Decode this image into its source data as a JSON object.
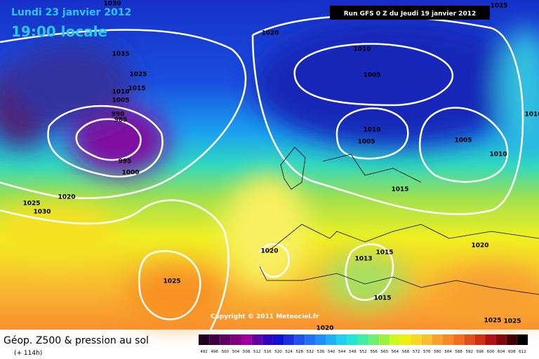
{
  "header": {
    "date": "Lundi 23 janvier 2012",
    "time": "19:00 locale",
    "run": "Run GFS 0 Z du Jeudi 19 janvier 2012"
  },
  "copyright": "Copyright © 2011 Meteociel.fr",
  "legend": {
    "title": "Géop. Z500 & pression au sol",
    "lead": "(+ 114h)",
    "scale": [
      492,
      496,
      500,
      504,
      508,
      512,
      516,
      520,
      524,
      528,
      532,
      536,
      540,
      544,
      548,
      552,
      556,
      560,
      564,
      568,
      572,
      576,
      580,
      584,
      588,
      592,
      596,
      600,
      604,
      608,
      612
    ]
  },
  "isobar_labels": [
    "1030",
    "1020",
    "1035",
    "1025",
    "1015",
    "1010",
    "1005",
    "990",
    "985",
    "995",
    "1000",
    "1010",
    "1005",
    "1010",
    "1005",
    "1005",
    "1010",
    "1015",
    "1020",
    "1025",
    "1030",
    "1020",
    "1015",
    "1013",
    "1020",
    "1025",
    "1015",
    "1025",
    "1025",
    "1020",
    "1025",
    "1010"
  ]
}
